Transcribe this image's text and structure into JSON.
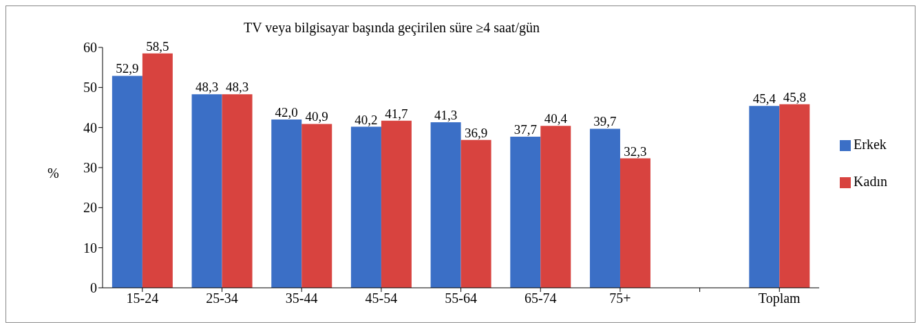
{
  "chart_data": {
    "type": "bar",
    "title": "TV veya bilgisayar başında geçirilen süre ≥4 saat/gün",
    "ylabel": "%",
    "categories": [
      "15-24",
      "25-34",
      "35-44",
      "45-54",
      "55-64",
      "65-74",
      "75+",
      null,
      "Toplam"
    ],
    "series": [
      {
        "name": "Erkek",
        "color": "#3b6fc6",
        "values": [
          52.9,
          48.3,
          42.0,
          40.2,
          41.3,
          37.7,
          39.7,
          null,
          45.4
        ],
        "value_labels": [
          "52,9",
          "48,3",
          "42,0",
          "40,2",
          "41,3",
          "37,7",
          "39,7",
          null,
          "45,4"
        ]
      },
      {
        "name": "Kadın",
        "color": "#d8433f",
        "values": [
          58.5,
          48.3,
          40.9,
          41.7,
          36.9,
          40.4,
          32.3,
          null,
          45.8
        ],
        "value_labels": [
          "58,5",
          "48,3",
          "40,9",
          "41,7",
          "36,9",
          "40,4",
          "32,3",
          null,
          "45,8"
        ]
      }
    ],
    "ylim": [
      0,
      60
    ],
    "yticks": [
      0,
      10,
      20,
      30,
      40,
      50,
      60
    ],
    "grid": false,
    "legend": "right"
  }
}
